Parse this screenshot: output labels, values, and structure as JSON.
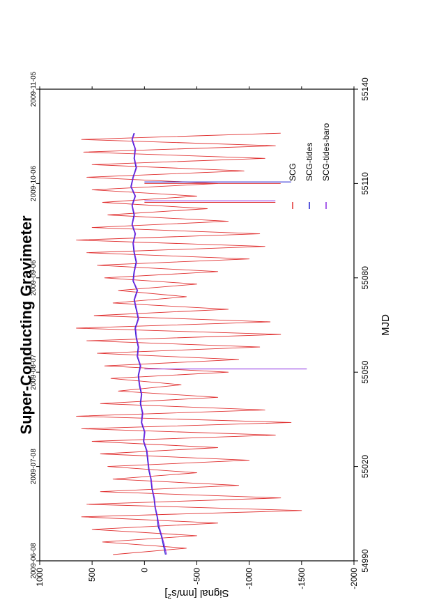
{
  "chart_data": {
    "type": "line",
    "title": "Super-Conducting Gravimeter",
    "xlabel": "MJD",
    "ylabel": "Signal [nm/s",
    "ylabel_superscript": "2",
    "ylabel_suffix": "]",
    "xlim": [
      54990,
      55140
    ],
    "ylim": [
      -2000,
      1000
    ],
    "x_ticks": [
      54990,
      55020,
      55050,
      55080,
      55110,
      55140
    ],
    "y_ticks": [
      1000,
      500,
      0,
      -500,
      -1000,
      -1500,
      -2000
    ],
    "date_ticks": [
      {
        "x": 54990,
        "label": "2009-06-08"
      },
      {
        "x": 55020,
        "label": "2009-07-08"
      },
      {
        "x": 55050,
        "label": "2009-08-07"
      },
      {
        "x": 55080,
        "label": "2009-09-06"
      },
      {
        "x": 55110,
        "label": "2009-10-06"
      },
      {
        "x": 55140,
        "label": "2009-11-05"
      }
    ],
    "legend_position": "top-right",
    "series": [
      {
        "name": "SCG",
        "color": "#e03030",
        "points": [
          [
            54992.0,
            300
          ],
          [
            54994.0,
            -400
          ],
          [
            54996.0,
            400
          ],
          [
            54998.0,
            -500
          ],
          [
            55000.0,
            500
          ],
          [
            55002.0,
            -700
          ],
          [
            55004.0,
            600
          ],
          [
            55006.0,
            -1500
          ],
          [
            55008.0,
            550
          ],
          [
            55010.0,
            -1300
          ],
          [
            55012.0,
            420
          ],
          [
            55014.0,
            -900
          ],
          [
            55016.0,
            300
          ],
          [
            55018.0,
            -500
          ],
          [
            55020.0,
            350
          ],
          [
            55022.0,
            -1000
          ],
          [
            55024.0,
            420
          ],
          [
            55026.0,
            -700
          ],
          [
            55028.0,
            500
          ],
          [
            55030.0,
            -1250
          ],
          [
            55032.0,
            600
          ],
          [
            55034.0,
            -1400
          ],
          [
            55036.0,
            650
          ],
          [
            55038.0,
            -1150
          ],
          [
            55040.0,
            420
          ],
          [
            55042.0,
            -700
          ],
          [
            55044.0,
            250
          ],
          [
            55046.0,
            -350
          ],
          [
            55048.0,
            320
          ],
          [
            55050.0,
            -800
          ],
          [
            55052.0,
            380
          ],
          [
            55054.0,
            -900
          ],
          [
            55056.0,
            450
          ],
          [
            55058.0,
            -1100
          ],
          [
            55060.0,
            550
          ],
          [
            55062.0,
            -1300
          ],
          [
            55064.0,
            650
          ],
          [
            55066.0,
            -1200
          ],
          [
            55068.0,
            480
          ],
          [
            55070.0,
            -800
          ],
          [
            55072.0,
            300
          ],
          [
            55074.0,
            -400
          ],
          [
            55076.0,
            250
          ],
          [
            55078.0,
            -500
          ],
          [
            55080.0,
            380
          ],
          [
            55082.0,
            -700
          ],
          [
            55084.0,
            450
          ],
          [
            55086.0,
            -1000
          ],
          [
            55088.0,
            550
          ],
          [
            55090.0,
            -1150
          ],
          [
            55092.0,
            650
          ],
          [
            55094.0,
            -1100
          ],
          [
            55096.0,
            500
          ],
          [
            55098.0,
            -800
          ],
          [
            55100.0,
            350
          ],
          [
            55102.0,
            -600
          ],
          [
            55104.0,
            400
          ],
          [
            55106.0,
            -500
          ],
          [
            55108.0,
            500
          ],
          [
            55110.0,
            -700
          ],
          [
            55112.0,
            550
          ],
          [
            55114.0,
            -950
          ],
          [
            55116.0,
            500
          ],
          [
            55118.0,
            -1150
          ],
          [
            55120.0,
            580
          ],
          [
            55122.0,
            -1250
          ],
          [
            55124.0,
            600
          ],
          [
            55126.0,
            -1300
          ]
        ]
      },
      {
        "name": "SCG-tides",
        "color": "#2020d0",
        "points": [
          [
            54992.0,
            -200
          ],
          [
            54995.0,
            -180
          ],
          [
            54998.0,
            -160
          ],
          [
            55001.0,
            -130
          ],
          [
            55004.0,
            -120
          ],
          [
            55007.0,
            -100
          ],
          [
            55010.0,
            -90
          ],
          [
            55013.0,
            -70
          ],
          [
            55016.0,
            -60
          ],
          [
            55019.0,
            -40
          ],
          [
            55022.0,
            -30
          ],
          [
            55025.0,
            -20
          ],
          [
            55028.0,
            10
          ],
          [
            55031.0,
            0
          ],
          [
            55034.0,
            30
          ],
          [
            55037.0,
            20
          ],
          [
            55040.0,
            40
          ],
          [
            55043.0,
            30
          ],
          [
            55046.0,
            50
          ],
          [
            55049.0,
            60
          ],
          [
            55052.0,
            40
          ],
          [
            55055.0,
            70
          ],
          [
            55058.0,
            60
          ],
          [
            55061.0,
            80
          ],
          [
            55064.0,
            90
          ],
          [
            55067.0,
            60
          ],
          [
            55070.0,
            80
          ],
          [
            55073.0,
            100
          ],
          [
            55076.0,
            70
          ],
          [
            55079.0,
            110
          ],
          [
            55082.0,
            100
          ],
          [
            55085.0,
            80
          ],
          [
            55088.0,
            100
          ],
          [
            55091.0,
            110
          ],
          [
            55094.0,
            90
          ],
          [
            55097.0,
            120
          ],
          [
            55100.0,
            100
          ],
          [
            55103.0,
            120
          ],
          [
            55106.0,
            90
          ],
          [
            55109.0,
            130
          ],
          [
            55112.0,
            110
          ],
          [
            55115.0,
            80
          ],
          [
            55118.0,
            100
          ],
          [
            55121.0,
            90
          ],
          [
            55124.0,
            120
          ],
          [
            55126.0,
            100
          ]
        ]
      },
      {
        "name": "SCG-tides-baro",
        "color": "#8a2be2",
        "points": [
          [
            54992.0,
            -210
          ],
          [
            54995.0,
            -190
          ],
          [
            54998.0,
            -165
          ],
          [
            55001.0,
            -140
          ],
          [
            55004.0,
            -125
          ],
          [
            55007.0,
            -105
          ],
          [
            55010.0,
            -95
          ],
          [
            55013.0,
            -75
          ],
          [
            55016.0,
            -65
          ],
          [
            55019.0,
            -45
          ],
          [
            55022.0,
            -35
          ],
          [
            55025.0,
            -25
          ],
          [
            55028.0,
            5
          ],
          [
            55031.0,
            -5
          ],
          [
            55034.0,
            25
          ],
          [
            55037.0,
            15
          ],
          [
            55040.0,
            35
          ],
          [
            55043.0,
            25
          ],
          [
            55046.0,
            45
          ],
          [
            55049.0,
            55
          ],
          [
            55052.0,
            35
          ],
          [
            55055.0,
            65
          ],
          [
            55058.0,
            55
          ],
          [
            55061.0,
            75
          ],
          [
            55064.0,
            85
          ],
          [
            55067.0,
            55
          ],
          [
            55070.0,
            75
          ],
          [
            55073.0,
            95
          ],
          [
            55076.0,
            65
          ],
          [
            55079.0,
            105
          ],
          [
            55082.0,
            95
          ],
          [
            55085.0,
            75
          ],
          [
            55088.0,
            95
          ],
          [
            55091.0,
            105
          ],
          [
            55094.0,
            85
          ],
          [
            55097.0,
            115
          ],
          [
            55100.0,
            95
          ],
          [
            55103.0,
            115
          ],
          [
            55106.0,
            85
          ],
          [
            55109.0,
            125
          ],
          [
            55112.0,
            105
          ],
          [
            55115.0,
            75
          ],
          [
            55118.0,
            95
          ],
          [
            55121.0,
            85
          ],
          [
            55124.0,
            115
          ],
          [
            55126.0,
            95
          ]
        ]
      }
    ],
    "spikes": [
      {
        "x": 55051.0,
        "y": -1550,
        "color": "#8a2be2"
      },
      {
        "x": 55104.5,
        "y": -1250,
        "color": "#8a2be2"
      },
      {
        "x": 55104.0,
        "y": -1250,
        "color": "#e03030"
      },
      {
        "x": 55110.5,
        "y": -1400,
        "color": "#2020d0"
      },
      {
        "x": 55110.0,
        "y": -1300,
        "color": "#e03030"
      }
    ]
  }
}
